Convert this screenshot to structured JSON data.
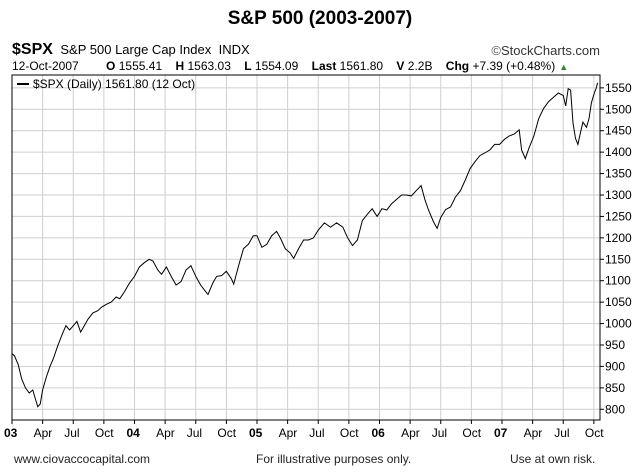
{
  "header": {
    "title": "S&P 500 (2003-2007)",
    "ticker": "$SPX",
    "index_name": "S&P 500 Large Cap Index",
    "exchange": "INDX",
    "brand": "StockCharts.com",
    "date": "12-Oct-2007",
    "open_label": "O",
    "open": "1555.41",
    "high_label": "H",
    "high": "1563.03",
    "low_label": "L",
    "low": "1554.09",
    "last_label": "Last",
    "last": "1561.80",
    "volume_label": "V",
    "volume": "2.2B",
    "change_label": "Chg",
    "change": "+7.39 (+0.48%)"
  },
  "footer": {
    "left": "www.ciovaccocapital.com",
    "middle": "For illustrative purposes only.",
    "right": "Use at own risk."
  },
  "colors": {
    "line": "#000000",
    "grid": "#cfcfcf",
    "axis": "#000000",
    "up": "#2a8a2a"
  },
  "chart_data": {
    "type": "line",
    "title": "S&P 500 (2003-2007)",
    "legend": "$SPX (Daily) 1561.80 (12 Oct)",
    "legend_placement": "top-left",
    "grid": true,
    "ylim": [
      775,
      1580
    ],
    "yticks": [
      800,
      850,
      900,
      950,
      1000,
      1050,
      1100,
      1150,
      1200,
      1250,
      1300,
      1350,
      1400,
      1450,
      1500,
      1550
    ],
    "xlim": [
      2003.0,
      2007.8
    ],
    "xticks": [
      {
        "label": "03",
        "x": 2003.0,
        "bold": true
      },
      {
        "label": "Apr",
        "x": 2003.25
      },
      {
        "label": "Jul",
        "x": 2003.5
      },
      {
        "label": "Oct",
        "x": 2003.75
      },
      {
        "label": "04",
        "x": 2004.0,
        "bold": true
      },
      {
        "label": "Apr",
        "x": 2004.25
      },
      {
        "label": "Jul",
        "x": 2004.5
      },
      {
        "label": "Oct",
        "x": 2004.75
      },
      {
        "label": "05",
        "x": 2005.0,
        "bold": true
      },
      {
        "label": "Apr",
        "x": 2005.25
      },
      {
        "label": "Jul",
        "x": 2005.5
      },
      {
        "label": "Oct",
        "x": 2005.75
      },
      {
        "label": "06",
        "x": 2006.0,
        "bold": true
      },
      {
        "label": "Apr",
        "x": 2006.25
      },
      {
        "label": "Jul",
        "x": 2006.5
      },
      {
        "label": "Oct",
        "x": 2006.75
      },
      {
        "label": "07",
        "x": 2007.0,
        "bold": true
      },
      {
        "label": "Apr",
        "x": 2007.25
      },
      {
        "label": "Jul",
        "x": 2007.5
      },
      {
        "label": "Oct",
        "x": 2007.75
      }
    ],
    "series": [
      {
        "points": [
          [
            2003.0,
            930
          ],
          [
            2003.02,
            925
          ],
          [
            2003.05,
            905
          ],
          [
            2003.08,
            870
          ],
          [
            2003.11,
            850
          ],
          [
            2003.14,
            838
          ],
          [
            2003.17,
            845
          ],
          [
            2003.19,
            825
          ],
          [
            2003.21,
            806
          ],
          [
            2003.23,
            812
          ],
          [
            2003.25,
            845
          ],
          [
            2003.28,
            875
          ],
          [
            2003.31,
            900
          ],
          [
            2003.34,
            920
          ],
          [
            2003.37,
            945
          ],
          [
            2003.41,
            975
          ],
          [
            2003.44,
            995
          ],
          [
            2003.47,
            985
          ],
          [
            2003.5,
            995
          ],
          [
            2003.53,
            1005
          ],
          [
            2003.56,
            980
          ],
          [
            2003.59,
            995
          ],
          [
            2003.62,
            1010
          ],
          [
            2003.66,
            1025
          ],
          [
            2003.7,
            1030
          ],
          [
            2003.73,
            1038
          ],
          [
            2003.77,
            1045
          ],
          [
            2003.81,
            1050
          ],
          [
            2003.85,
            1062
          ],
          [
            2003.88,
            1058
          ],
          [
            2003.92,
            1075
          ],
          [
            2003.96,
            1095
          ],
          [
            2004.0,
            1110
          ],
          [
            2004.04,
            1132
          ],
          [
            2004.08,
            1142
          ],
          [
            2004.12,
            1150
          ],
          [
            2004.15,
            1146
          ],
          [
            2004.19,
            1125
          ],
          [
            2004.22,
            1115
          ],
          [
            2004.26,
            1132
          ],
          [
            2004.3,
            1110
          ],
          [
            2004.34,
            1090
          ],
          [
            2004.38,
            1098
          ],
          [
            2004.42,
            1125
          ],
          [
            2004.46,
            1135
          ],
          [
            2004.5,
            1110
          ],
          [
            2004.54,
            1090
          ],
          [
            2004.58,
            1075
          ],
          [
            2004.6,
            1068
          ],
          [
            2004.64,
            1095
          ],
          [
            2004.67,
            1110
          ],
          [
            2004.71,
            1112
          ],
          [
            2004.75,
            1122
          ],
          [
            2004.79,
            1105
          ],
          [
            2004.81,
            1092
          ],
          [
            2004.85,
            1135
          ],
          [
            2004.89,
            1175
          ],
          [
            2004.93,
            1185
          ],
          [
            2004.97,
            1205
          ],
          [
            2005.0,
            1205
          ],
          [
            2005.04,
            1178
          ],
          [
            2005.08,
            1185
          ],
          [
            2005.12,
            1205
          ],
          [
            2005.16,
            1215
          ],
          [
            2005.19,
            1200
          ],
          [
            2005.23,
            1175
          ],
          [
            2005.27,
            1165
          ],
          [
            2005.3,
            1152
          ],
          [
            2005.34,
            1175
          ],
          [
            2005.38,
            1195
          ],
          [
            2005.42,
            1195
          ],
          [
            2005.46,
            1200
          ],
          [
            2005.5,
            1218
          ],
          [
            2005.55,
            1235
          ],
          [
            2005.6,
            1225
          ],
          [
            2005.65,
            1235
          ],
          [
            2005.7,
            1225
          ],
          [
            2005.74,
            1200
          ],
          [
            2005.78,
            1182
          ],
          [
            2005.82,
            1195
          ],
          [
            2005.86,
            1240
          ],
          [
            2005.9,
            1255
          ],
          [
            2005.94,
            1268
          ],
          [
            2005.98,
            1250
          ],
          [
            2006.02,
            1268
          ],
          [
            2006.06,
            1265
          ],
          [
            2006.1,
            1280
          ],
          [
            2006.14,
            1290
          ],
          [
            2006.18,
            1300
          ],
          [
            2006.22,
            1300
          ],
          [
            2006.26,
            1298
          ],
          [
            2006.3,
            1310
          ],
          [
            2006.34,
            1322
          ],
          [
            2006.37,
            1290
          ],
          [
            2006.4,
            1265
          ],
          [
            2006.44,
            1238
          ],
          [
            2006.47,
            1222
          ],
          [
            2006.5,
            1248
          ],
          [
            2006.54,
            1266
          ],
          [
            2006.58,
            1272
          ],
          [
            2006.62,
            1295
          ],
          [
            2006.66,
            1310
          ],
          [
            2006.7,
            1335
          ],
          [
            2006.74,
            1362
          ],
          [
            2006.78,
            1378
          ],
          [
            2006.82,
            1392
          ],
          [
            2006.86,
            1398
          ],
          [
            2006.9,
            1405
          ],
          [
            2006.94,
            1418
          ],
          [
            2006.98,
            1418
          ],
          [
            2007.02,
            1430
          ],
          [
            2007.06,
            1438
          ],
          [
            2007.1,
            1442
          ],
          [
            2007.14,
            1452
          ],
          [
            2007.16,
            1405
          ],
          [
            2007.19,
            1385
          ],
          [
            2007.22,
            1410
          ],
          [
            2007.26,
            1438
          ],
          [
            2007.3,
            1478
          ],
          [
            2007.34,
            1502
          ],
          [
            2007.38,
            1518
          ],
          [
            2007.42,
            1528
          ],
          [
            2007.46,
            1538
          ],
          [
            2007.5,
            1532
          ],
          [
            2007.52,
            1508
          ],
          [
            2007.54,
            1548
          ],
          [
            2007.56,
            1545
          ],
          [
            2007.58,
            1468
          ],
          [
            2007.6,
            1432
          ],
          [
            2007.62,
            1418
          ],
          [
            2007.64,
            1445
          ],
          [
            2007.66,
            1470
          ],
          [
            2007.69,
            1458
          ],
          [
            2007.71,
            1478
          ],
          [
            2007.73,
            1515
          ],
          [
            2007.75,
            1535
          ],
          [
            2007.77,
            1550
          ],
          [
            2007.78,
            1561.8
          ]
        ]
      }
    ]
  }
}
